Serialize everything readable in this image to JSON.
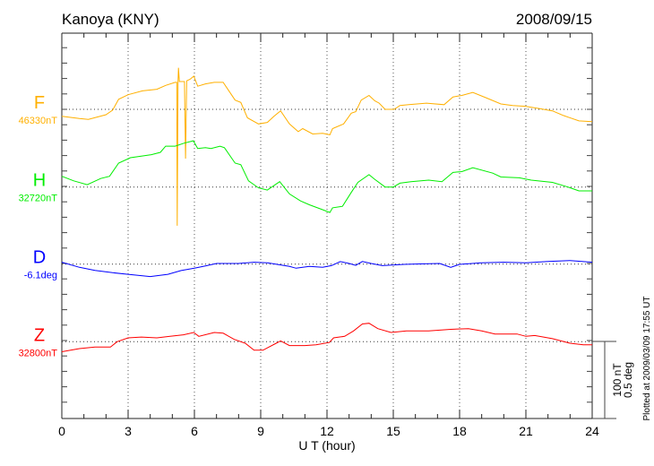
{
  "chart_data": {
    "type": "line",
    "title": "Kanoya (KNY)",
    "date": "2008/09/15",
    "xlabel": "U T (hour)",
    "xlim": [
      0,
      24
    ],
    "xticks": [
      "0",
      "3",
      "6",
      "9",
      "12",
      "15",
      "18",
      "21",
      "24"
    ],
    "grid": "dotted vertical lines every 3 hours, dotted baseline per component",
    "scale_bar": {
      "nT": "100 nT",
      "deg": "0.5 deg"
    },
    "footer": "Plotted at 2009/03/09 17:55 UT",
    "series": [
      {
        "name": "F",
        "baseline_label": "46330nT",
        "baseline": 46330,
        "unit": "nT",
        "color": "#ffb000",
        "x": [
          0,
          0.8,
          1.2,
          2,
          2.3,
          2.57,
          3,
          3.65,
          4.3,
          4.7,
          5.13,
          5.2,
          5.22,
          5.26,
          5.28,
          5.32,
          5.4,
          5.55,
          5.6,
          5.65,
          5.8,
          5.97,
          6.15,
          6.5,
          6.9,
          7.3,
          7.84,
          8.1,
          8.4,
          8.9,
          9.3,
          9.6,
          9.9,
          10.3,
          10.7,
          10.9,
          11.35,
          11.8,
          12.13,
          12.25,
          12.75,
          13.1,
          13.3,
          13.55,
          13.9,
          14.16,
          14.36,
          14.63,
          15.04,
          15.3,
          15.7,
          16.5,
          17.3,
          17.7,
          18.1,
          18.6,
          19.2,
          19.87,
          20.4,
          20.97,
          21.6,
          22.2,
          22.7,
          23.4,
          24
        ],
        "y": [
          46321,
          46318,
          46317,
          46323,
          46329,
          46343,
          46349,
          46354,
          46356,
          46361,
          46365,
          46365,
          46179,
          46365,
          46384,
          46366,
          46366,
          46366,
          46266,
          46367,
          46369,
          46373,
          46360,
          46363,
          46365,
          46365,
          46342,
          46339,
          46319,
          46311,
          46313,
          46321,
          46328,
          46311,
          46301,
          46305,
          46298,
          46299,
          46297,
          46305,
          46311,
          46325,
          46327,
          46342,
          46348,
          46341,
          46338,
          46330,
          46330,
          46335,
          46336,
          46338,
          46336,
          46346,
          46348,
          46352,
          46345,
          46337,
          46335,
          46334,
          46331,
          46328,
          46322,
          46315,
          46314
        ]
      },
      {
        "name": "H",
        "baseline_label": "32720nT",
        "baseline": 32720,
        "unit": "nT",
        "color": "#00ee00",
        "x": [
          0,
          0.54,
          1.15,
          1.76,
          2.16,
          2.57,
          3.1,
          4.05,
          4.46,
          4.7,
          5.13,
          5.54,
          5.95,
          6.15,
          6.5,
          6.75,
          7.16,
          7.36,
          7.84,
          8.1,
          8.45,
          8.9,
          9.3,
          9.86,
          10.3,
          10.8,
          11.2,
          11.76,
          12.13,
          12.25,
          12.7,
          13.1,
          13.4,
          13.9,
          14.16,
          14.63,
          15,
          15.3,
          15.8,
          16.6,
          17.2,
          17.7,
          18.1,
          18.6,
          19.5,
          19.87,
          20.7,
          21.24,
          22.2,
          22.9,
          23.4,
          24
        ],
        "y": [
          32734,
          32728,
          32723,
          32731,
          32734,
          32751,
          32758,
          32762,
          32765,
          32773,
          32773,
          32777,
          32780,
          32770,
          32771,
          32770,
          32773,
          32771,
          32751,
          32749,
          32728,
          32719,
          32716,
          32727,
          32711,
          32702,
          32697,
          32691,
          32687,
          32693,
          32695,
          32713,
          32726,
          32736,
          32730,
          32720,
          32720,
          32725,
          32727,
          32729,
          32727,
          32739,
          32740,
          32745,
          32738,
          32733,
          32732,
          32729,
          32726,
          32720,
          32715,
          32715
        ]
      },
      {
        "name": "D",
        "baseline_label": "-6.1deg",
        "baseline": -6.1,
        "unit": "deg",
        "color": "#0000ff",
        "x": [
          0,
          0.8,
          1.5,
          2.3,
          3,
          4,
          4.8,
          5.4,
          6,
          6.5,
          7,
          8,
          8.7,
          9.3,
          10.3,
          10.6,
          11.2,
          11.8,
          12.2,
          12.6,
          13.0,
          13.3,
          13.6,
          14.0,
          14.5,
          15.5,
          16.4,
          17.1,
          17.6,
          18,
          19,
          20,
          21,
          22,
          23,
          24
        ],
        "y": [
          -6.088,
          -6.121,
          -6.141,
          -6.156,
          -6.166,
          -6.181,
          -6.166,
          -6.142,
          -6.127,
          -6.112,
          -6.096,
          -6.096,
          -6.088,
          -6.092,
          -6.115,
          -6.127,
          -6.115,
          -6.121,
          -6.11,
          -6.084,
          -6.096,
          -6.108,
          -6.083,
          -6.096,
          -6.11,
          -6.102,
          -6.098,
          -6.096,
          -6.121,
          -6.102,
          -6.092,
          -6.088,
          -6.092,
          -6.083,
          -6.077,
          -6.088
        ]
      },
      {
        "name": "Z",
        "baseline_label": "32800nT",
        "baseline": 32800,
        "unit": "nT",
        "color": "#ff0000",
        "x": [
          0,
          0.8,
          1.5,
          2.2,
          2.5,
          3,
          3.6,
          4.3,
          4.9,
          5.5,
          5.97,
          6.2,
          6.9,
          7.3,
          7.8,
          8.3,
          8.7,
          9.1,
          9.7,
          9.9,
          10.3,
          11,
          11.5,
          12.1,
          12.3,
          12.8,
          13.2,
          13.6,
          13.9,
          14.3,
          14.9,
          15.6,
          16.6,
          17.6,
          18.4,
          19,
          19.6,
          20.6,
          21,
          21.4,
          22.2,
          23,
          23.6,
          24
        ],
        "y": [
          32787,
          32791,
          32793,
          32793,
          32800,
          32805,
          32806,
          32805,
          32807,
          32809,
          32812,
          32807,
          32812,
          32811,
          32803,
          32798,
          32789,
          32789,
          32798,
          32801,
          32795,
          32795,
          32796,
          32799,
          32805,
          32807,
          32814,
          32823,
          32824,
          32817,
          32812,
          32814,
          32814,
          32816,
          32817,
          32814,
          32810,
          32810,
          32807,
          32808,
          32804,
          32798,
          32796,
          32796
        ]
      }
    ]
  }
}
